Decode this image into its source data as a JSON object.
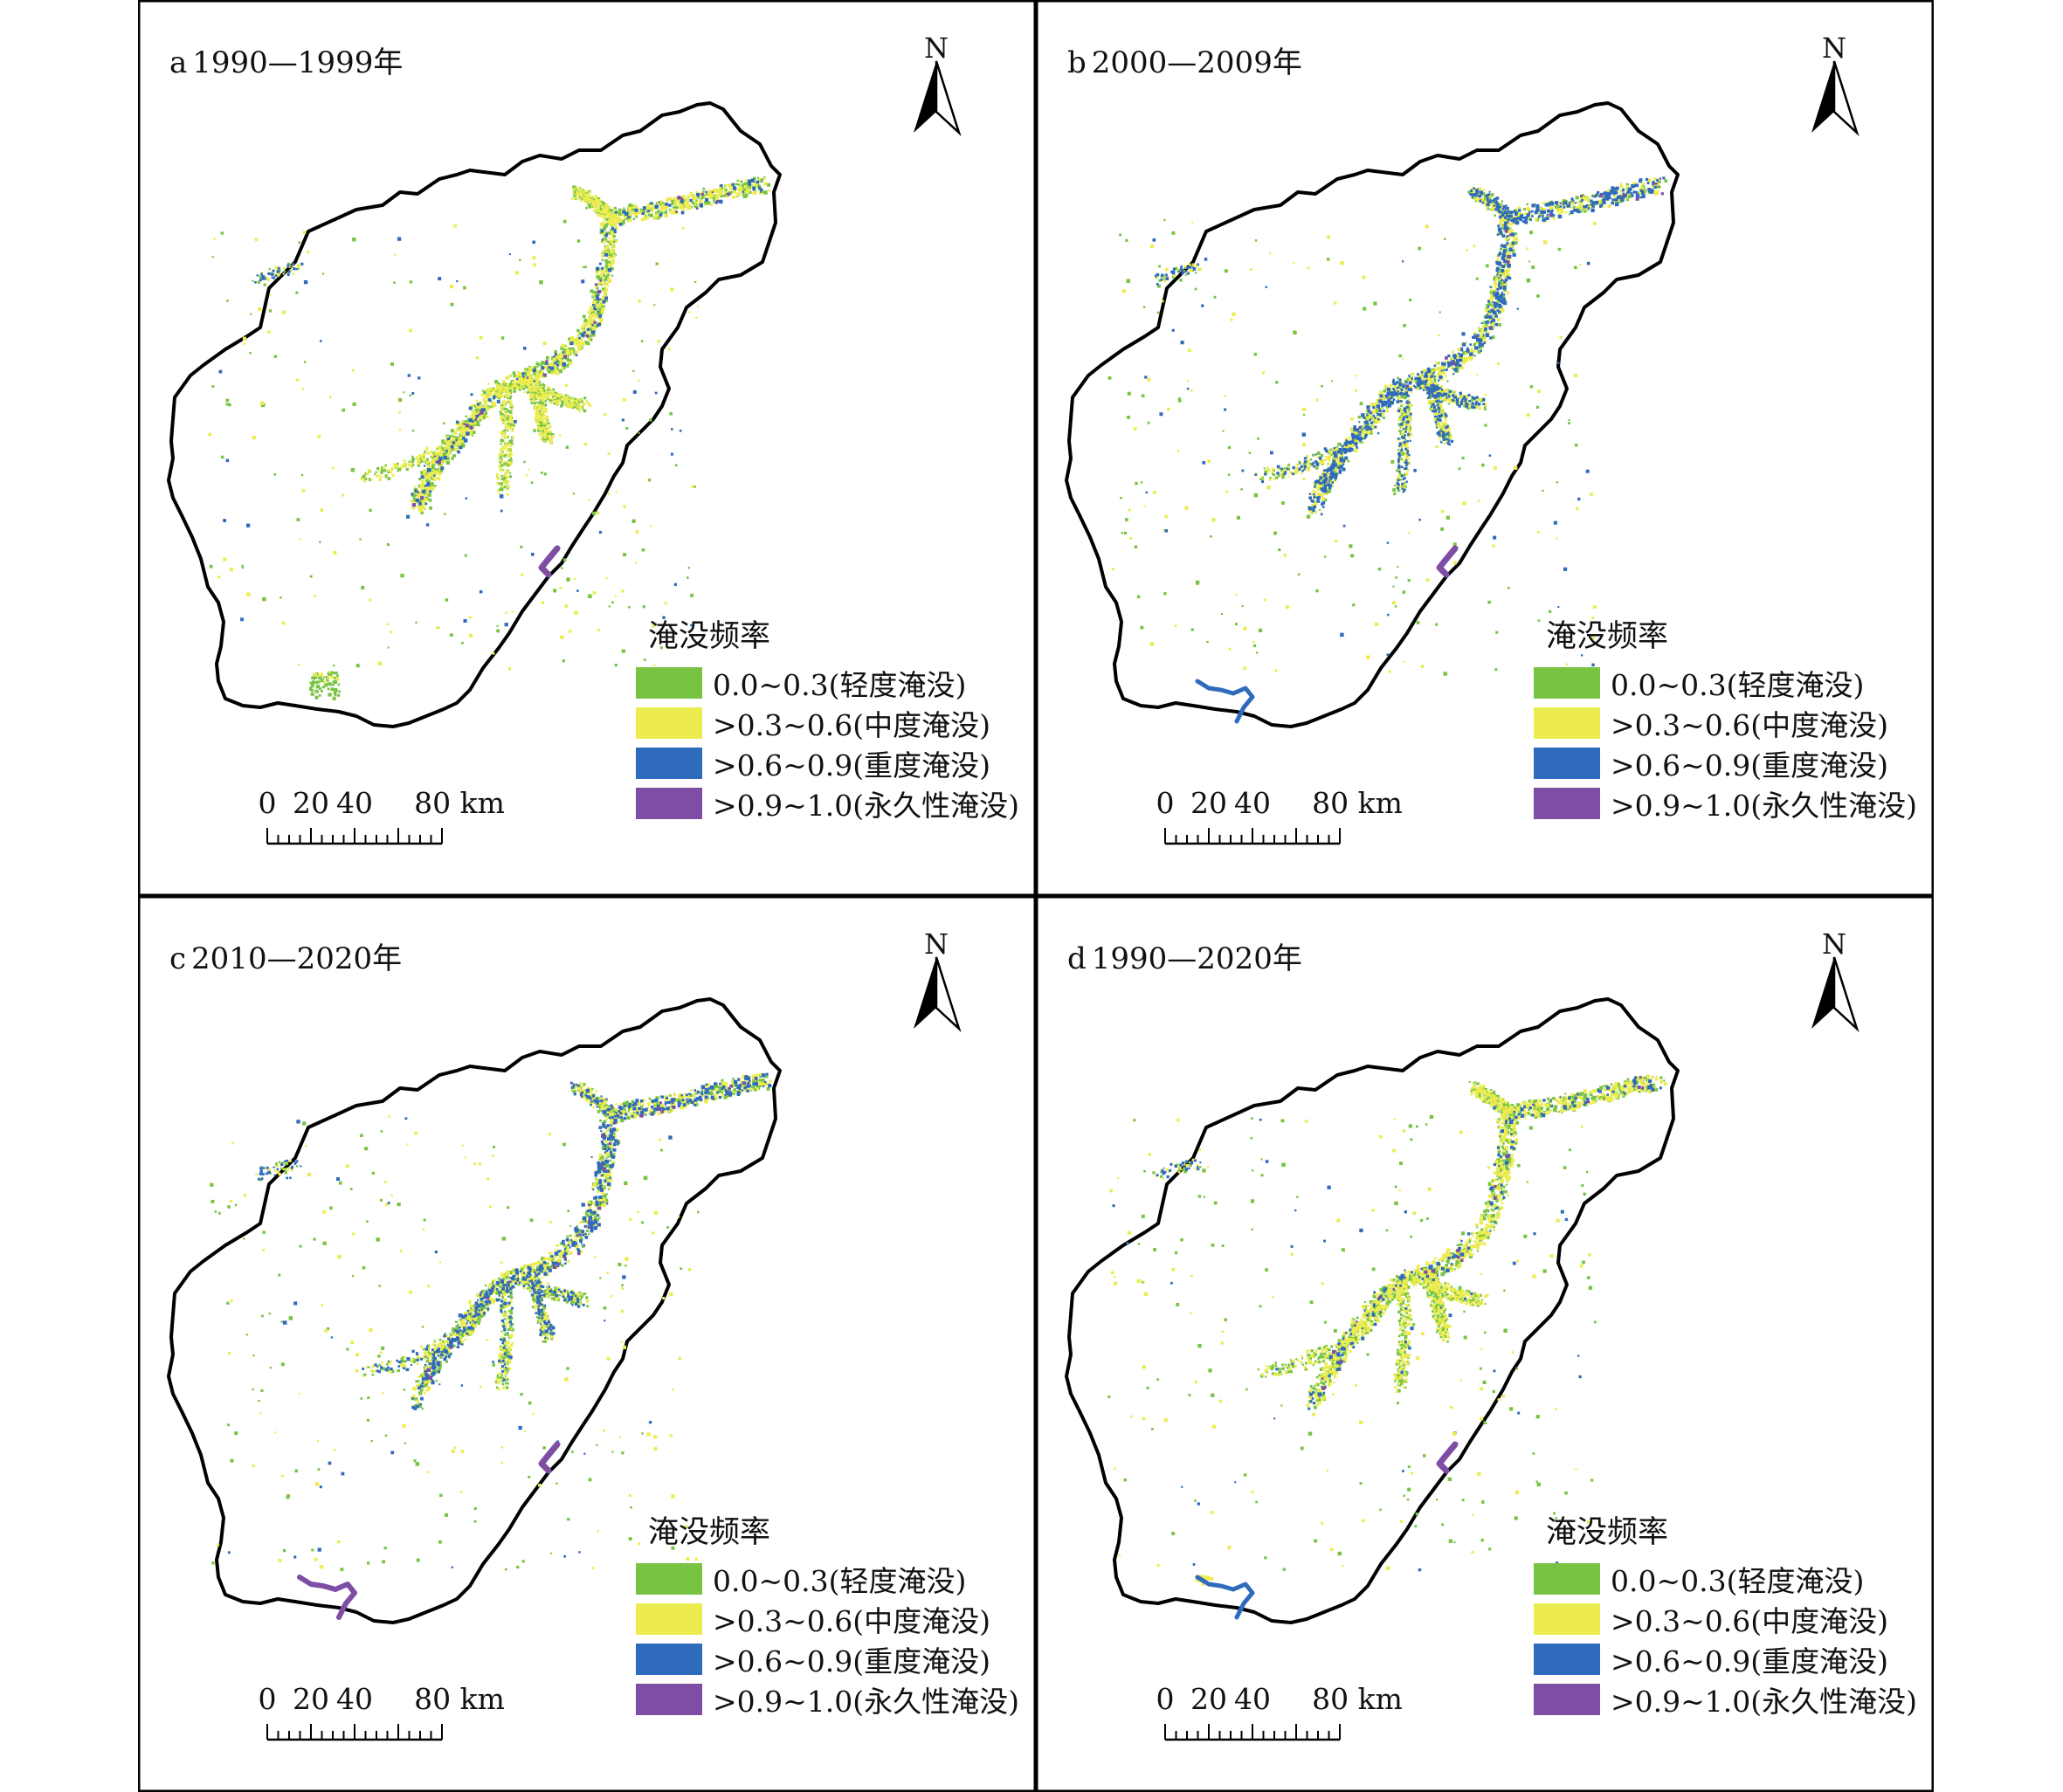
{
  "panels": [
    {
      "letter": "a",
      "period": "1990—1999年"
    },
    {
      "letter": "b",
      "period": "2000—2009年"
    },
    {
      "letter": "c",
      "period": "2010—2020年"
    },
    {
      "letter": "d",
      "period": "1990—2020年"
    }
  ],
  "north_label": "N",
  "legend": {
    "title": "淹没频率",
    "items": [
      {
        "label": "0.0~0.3(轻度淹没)",
        "color": "#78c442"
      },
      {
        "label": ">0.3~0.6(中度淹没)",
        "color": "#ecec4f"
      },
      {
        "label": ">0.6~0.9(重度淹没)",
        "color": "#2f6bbd"
      },
      {
        "label": ">0.9~1.0(永久性淹没)",
        "color": "#7d4ea3"
      }
    ]
  },
  "scale_bar": {
    "labels": [
      "0",
      "20",
      "40",
      "80 km"
    ]
  }
}
